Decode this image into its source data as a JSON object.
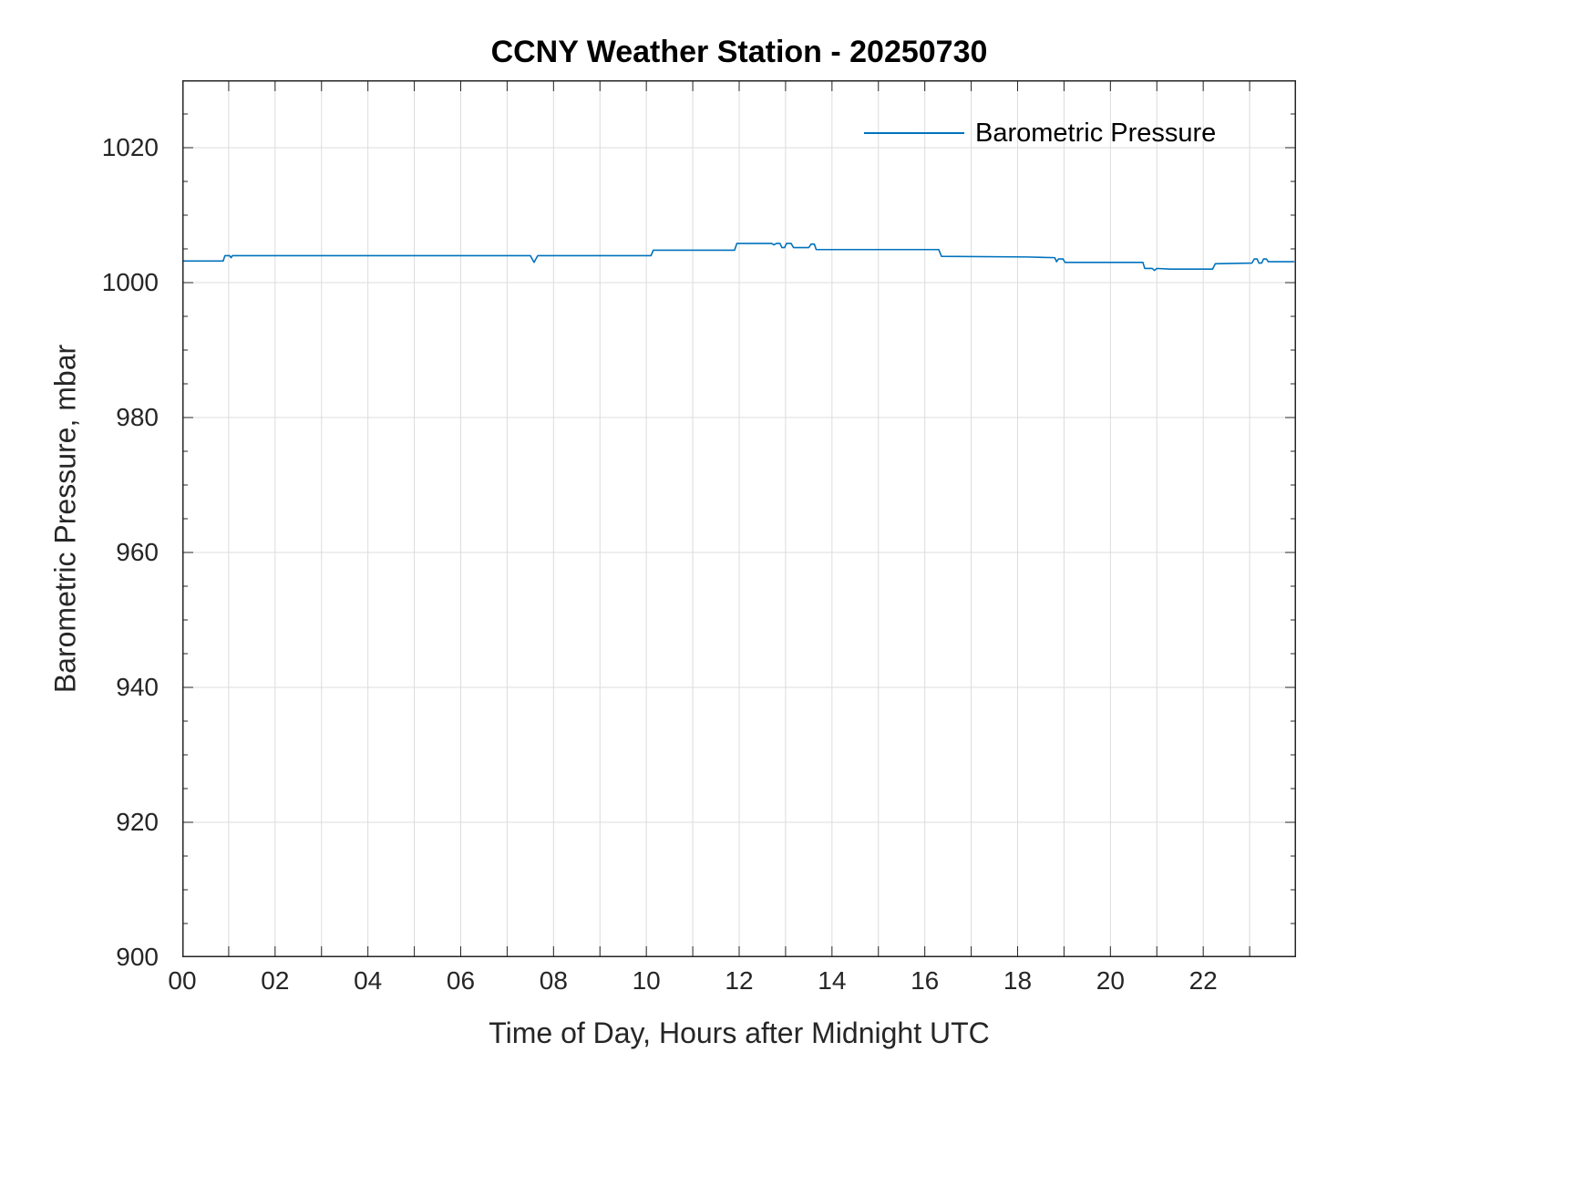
{
  "chart_data": {
    "type": "line",
    "title": "CCNY Weather Station - 20250730",
    "xlabel": "Time of Day, Hours after Midnight UTC",
    "ylabel": "Barometric Pressure, mbar",
    "xlim": [
      0,
      24
    ],
    "ylim": [
      900,
      1030
    ],
    "x_major_ticks": [
      0,
      2,
      4,
      6,
      8,
      10,
      12,
      14,
      16,
      18,
      20,
      22
    ],
    "x_tick_labels": [
      "00",
      "02",
      "04",
      "06",
      "08",
      "10",
      "12",
      "14",
      "16",
      "18",
      "20",
      "22"
    ],
    "x_minor_step": 1,
    "y_major_ticks": [
      900,
      920,
      940,
      960,
      980,
      1000,
      1020
    ],
    "y_minor_step": 5,
    "grid": true,
    "grid_color": "#dcdcdc",
    "axis_color": "#262626",
    "tick_len": 12,
    "minor_tick_len": 6,
    "legend": {
      "position": "top-right",
      "entries": [
        {
          "label": "Barometric Pressure",
          "color": "#0072BD"
        }
      ]
    },
    "series": [
      {
        "name": "Barometric Pressure",
        "color": "#0072BD",
        "points": [
          [
            0.0,
            1003.2
          ],
          [
            0.88,
            1003.2
          ],
          [
            0.92,
            1004.0
          ],
          [
            1.02,
            1004.0
          ],
          [
            1.05,
            1003.7
          ],
          [
            1.08,
            1004.0
          ],
          [
            7.5,
            1004.0
          ],
          [
            7.58,
            1003.0
          ],
          [
            7.66,
            1004.0
          ],
          [
            10.1,
            1004.0
          ],
          [
            10.15,
            1004.8
          ],
          [
            11.9,
            1004.8
          ],
          [
            11.95,
            1005.8
          ],
          [
            12.7,
            1005.8
          ],
          [
            12.75,
            1005.6
          ],
          [
            12.8,
            1005.8
          ],
          [
            12.88,
            1005.8
          ],
          [
            12.92,
            1005.2
          ],
          [
            12.98,
            1005.2
          ],
          [
            13.02,
            1005.8
          ],
          [
            13.12,
            1005.8
          ],
          [
            13.17,
            1005.2
          ],
          [
            13.5,
            1005.2
          ],
          [
            13.55,
            1005.7
          ],
          [
            13.62,
            1005.7
          ],
          [
            13.66,
            1004.9
          ],
          [
            16.3,
            1004.9
          ],
          [
            16.36,
            1003.9
          ],
          [
            18.2,
            1003.8
          ],
          [
            18.8,
            1003.7
          ],
          [
            18.84,
            1003.1
          ],
          [
            18.88,
            1003.5
          ],
          [
            18.98,
            1003.5
          ],
          [
            19.02,
            1003.0
          ],
          [
            20.7,
            1003.0
          ],
          [
            20.74,
            1002.1
          ],
          [
            20.9,
            1002.1
          ],
          [
            20.95,
            1001.8
          ],
          [
            21.0,
            1002.1
          ],
          [
            21.3,
            1002.0
          ],
          [
            22.2,
            1002.0
          ],
          [
            22.26,
            1002.8
          ],
          [
            23.05,
            1002.9
          ],
          [
            23.1,
            1003.5
          ],
          [
            23.16,
            1003.5
          ],
          [
            23.2,
            1002.9
          ],
          [
            23.26,
            1002.9
          ],
          [
            23.3,
            1003.5
          ],
          [
            23.36,
            1003.5
          ],
          [
            23.4,
            1003.1
          ],
          [
            23.95,
            1003.1
          ]
        ]
      }
    ]
  }
}
